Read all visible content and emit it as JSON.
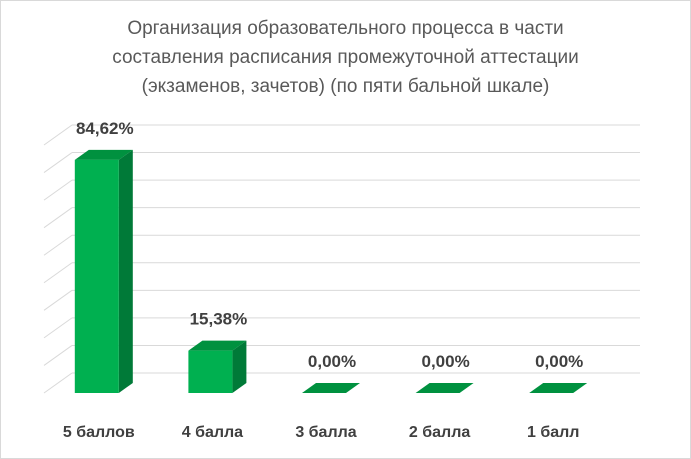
{
  "chart_data": {
    "type": "bar",
    "title_lines": [
      "Организация образовательного процесса в части",
      "составления расписания промежуточной аттестации",
      "(экзаменов, зачетов) (по пяти бальной шкале)"
    ],
    "categories": [
      "5 баллов",
      "4 балла",
      "3  балла",
      "2 балла",
      "1 балл"
    ],
    "values": [
      84.62,
      15.38,
      0.0,
      0.0,
      0.0
    ],
    "data_labels": [
      "84,62%",
      "15,38%",
      "0,00%",
      "0,00%",
      "0,00%"
    ],
    "ylim": [
      0,
      90
    ],
    "grid": true,
    "legend": false,
    "colors": {
      "bar_front": "#00b050",
      "bar_side": "#007a38",
      "bar_top": "#00913f",
      "grid": "#d9d9d9"
    }
  }
}
